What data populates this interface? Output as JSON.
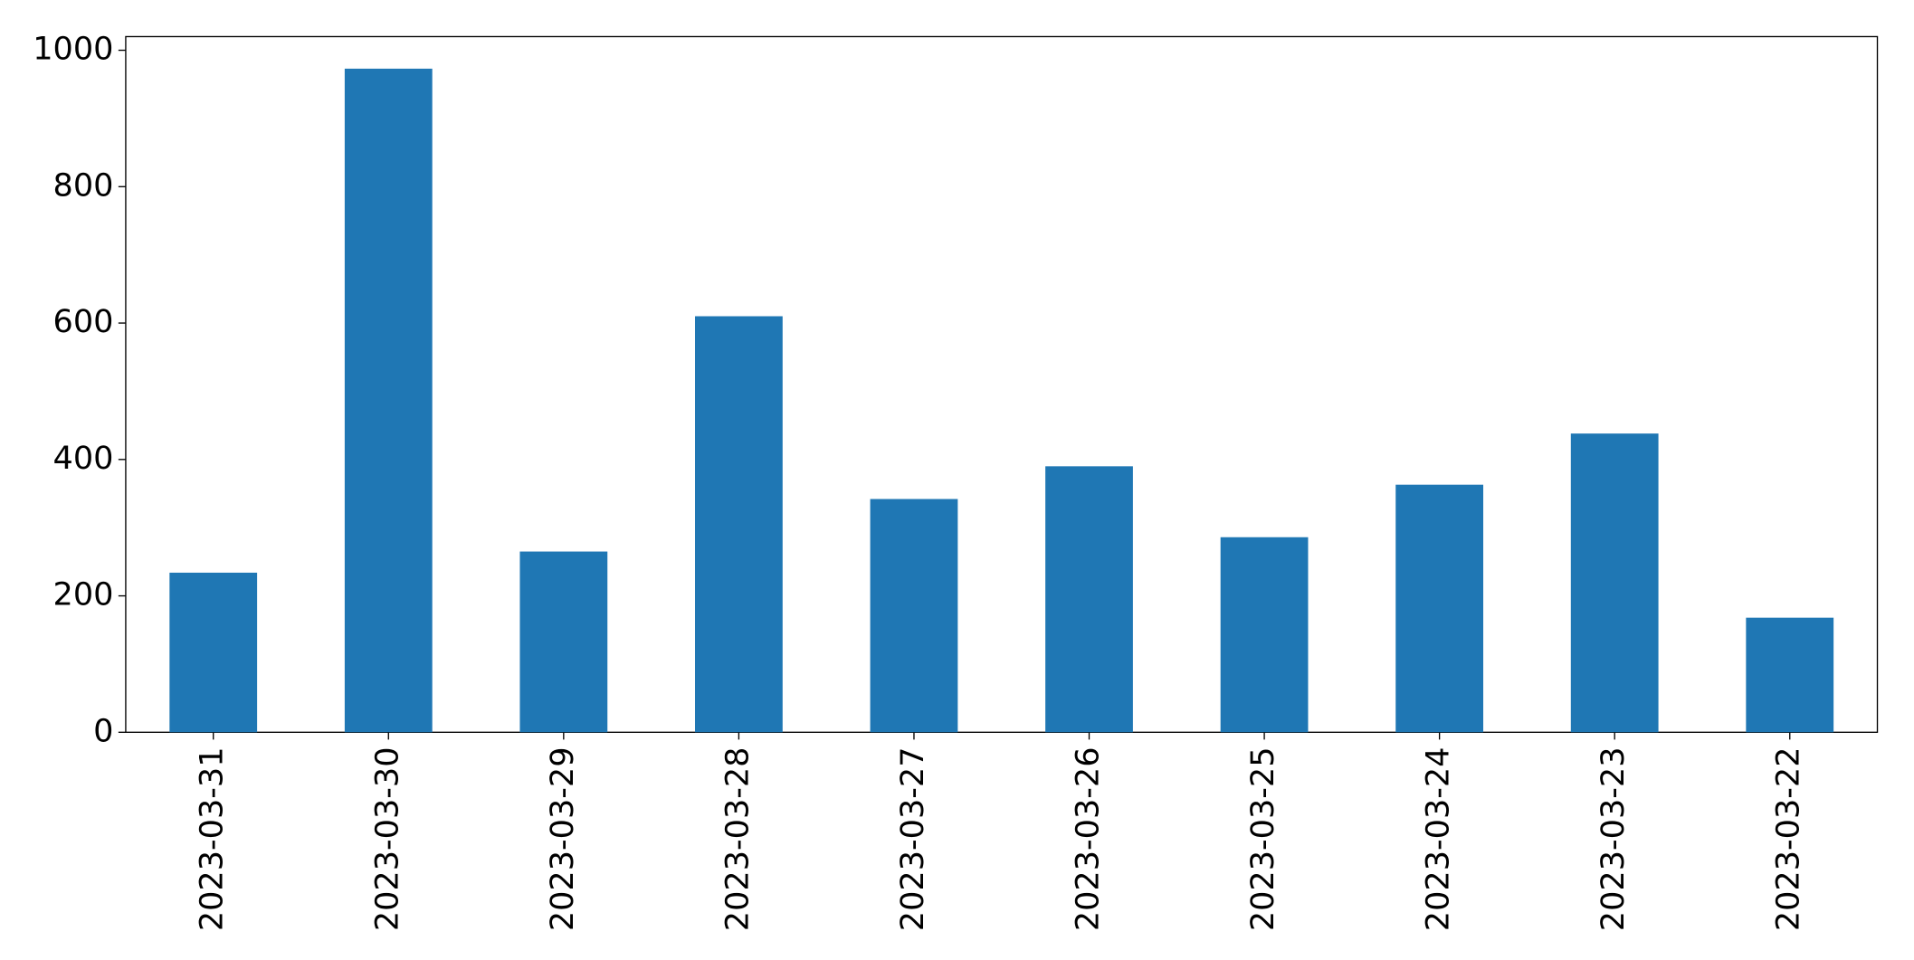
{
  "chart_data": {
    "type": "bar",
    "categories": [
      "2023-03-31",
      "2023-03-30",
      "2023-03-29",
      "2023-03-28",
      "2023-03-27",
      "2023-03-26",
      "2023-03-25",
      "2023-03-24",
      "2023-03-23",
      "2023-03-22"
    ],
    "values": [
      234,
      973,
      265,
      610,
      342,
      390,
      286,
      363,
      438,
      168
    ],
    "color": "#1f77b4",
    "ylim": [
      0,
      1020
    ],
    "yticks": [
      0,
      200,
      400,
      600,
      800,
      1000
    ],
    "grid": false
  }
}
